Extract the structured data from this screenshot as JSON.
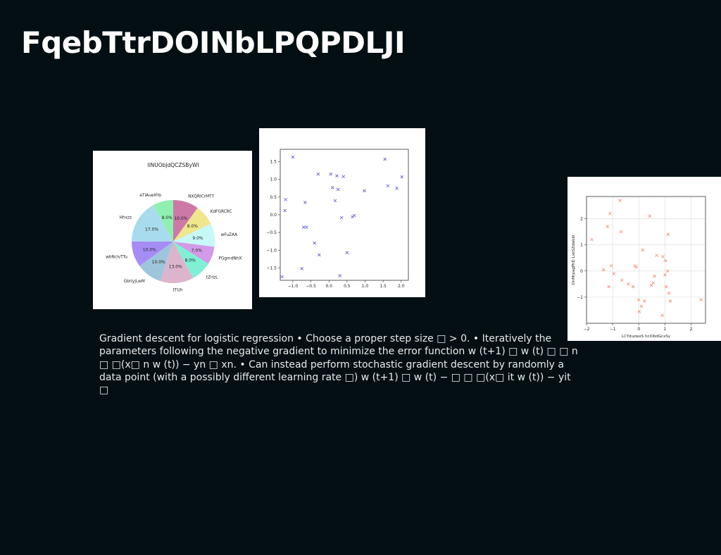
{
  "slide": {
    "title": "FqebTtrDOINbLPQPDLJI",
    "body": "Gradient descent for logistic regression • Choose a proper step size □ > 0. • Iteratively the parameters following the negative gradient to minimize the error function w (t+1) □ w (t) □ □ n □ □(x□ n w (t)) − yn □ xn. • Can instead perform stochastic gradient descent by randomly a data point (with a possibly different learning rate □) w (t+1) □ w (t) − □ □ □(x□ it w (t)) − yit □"
  },
  "chart_data": [
    {
      "type": "pie",
      "title": "liNUObjdQCZSByWI",
      "slices": [
        {
          "label": "NXQRICrMTT",
          "value": 10.0,
          "pct": "10.0%",
          "color": "#cc79a7"
        },
        {
          "label": "KdFGRCRC",
          "value": 8.0,
          "pct": "8.0%",
          "color": "#f0e68c"
        },
        {
          "label": "wFuZAA",
          "value": 9.0,
          "pct": "9.0%",
          "color": "#c6f8f8"
        },
        {
          "label": "PGgmdNhX",
          "value": 7.0,
          "pct": "7.0%",
          "color": "#d19be8"
        },
        {
          "label": "tZrIzL",
          "value": 8.0,
          "pct": "8.0%",
          "color": "#7ff0d4"
        },
        {
          "label": "tTUh",
          "value": 13.0,
          "pct": "13.0%",
          "color": "#dcb5cc"
        },
        {
          "label": "GbrlyjLwM",
          "value": 10.0,
          "pct": "10.0%",
          "color": "#9dc6dc"
        },
        {
          "label": "wbNclvTTu",
          "value": 10.0,
          "pct": "10.0%",
          "color": "#a68cf5"
        },
        {
          "label": "Hhxzz",
          "value": 17.0,
          "pct": "17.0%",
          "color": "#a9dbee"
        },
        {
          "label": "eTlAueHYo",
          "value": 8.0,
          "pct": "8.0%",
          "color": "#8ff0b0"
        }
      ]
    },
    {
      "type": "scatter",
      "title": "",
      "xlabel": "",
      "ylabel": "",
      "xlim": [
        -1.35,
        2.2
      ],
      "ylim": [
        -1.85,
        1.85
      ],
      "xticks": [
        "−1.0",
        "−0.5",
        "0.0",
        "0.5",
        "1.0",
        "1.5",
        "2.0"
      ],
      "xtick_values": [
        -1.0,
        -0.5,
        0.0,
        0.5,
        1.0,
        1.5,
        2.0
      ],
      "yticks": [
        "−1.5",
        "−1.0",
        "−0.5",
        "0.0",
        "0.5",
        "1.0",
        "1.5"
      ],
      "ytick_values": [
        -1.5,
        -1.0,
        -0.5,
        0.0,
        0.5,
        1.0,
        1.5
      ],
      "grid": false,
      "marker": "x",
      "color": "#5a5ad2",
      "points": [
        [
          -1.3,
          -1.75
        ],
        [
          -1.22,
          0.12
        ],
        [
          -1.2,
          0.43
        ],
        [
          -1.0,
          1.63
        ],
        [
          -0.75,
          -1.52
        ],
        [
          -0.7,
          -0.35
        ],
        [
          -0.66,
          0.35
        ],
        [
          -0.62,
          -0.35
        ],
        [
          -0.4,
          -0.8
        ],
        [
          -0.3,
          1.15
        ],
        [
          -0.27,
          -1.13
        ],
        [
          0.05,
          1.15
        ],
        [
          0.1,
          0.77
        ],
        [
          0.17,
          0.4
        ],
        [
          0.22,
          1.1
        ],
        [
          0.25,
          0.72
        ],
        [
          0.3,
          -1.72
        ],
        [
          0.35,
          -0.08
        ],
        [
          0.4,
          1.08
        ],
        [
          0.5,
          -1.07
        ],
        [
          0.65,
          -0.06
        ],
        [
          0.7,
          -0.02
        ],
        [
          0.98,
          0.68
        ],
        [
          1.55,
          1.57
        ],
        [
          1.63,
          0.82
        ],
        [
          1.88,
          0.75
        ],
        [
          2.02,
          1.07
        ]
      ]
    },
    {
      "type": "scatter",
      "title": "",
      "xlabel": "LCYduzwxS hcXIbdGcxSy",
      "ylabel": "OnMrpagPhD LxkSZdwkbl",
      "xlim": [
        -2.0,
        2.55
      ],
      "ylim": [
        -2.0,
        2.85
      ],
      "xticks": [
        "−2",
        "−1",
        "0",
        "1",
        "2"
      ],
      "xtick_values": [
        -2,
        -1,
        0,
        1,
        2
      ],
      "yticks": [
        "−1",
        "0",
        "1",
        "2"
      ],
      "ytick_values": [
        -1,
        0,
        1,
        2
      ],
      "grid": true,
      "marker": "x",
      "color": "#f08870",
      "points": [
        [
          -1.8,
          1.2
        ],
        [
          -1.35,
          0.05
        ],
        [
          -1.2,
          1.7
        ],
        [
          -1.15,
          -0.6
        ],
        [
          -1.1,
          2.2
        ],
        [
          -1.05,
          0.2
        ],
        [
          -0.95,
          -0.1
        ],
        [
          -0.72,
          2.7
        ],
        [
          -0.68,
          1.5
        ],
        [
          -0.65,
          -0.35
        ],
        [
          -0.4,
          -0.5
        ],
        [
          -0.22,
          -0.6
        ],
        [
          -0.15,
          0.2
        ],
        [
          -0.1,
          0.15
        ],
        [
          0.0,
          -1.1
        ],
        [
          0.02,
          -1.55
        ],
        [
          0.1,
          -1.35
        ],
        [
          0.15,
          0.8
        ],
        [
          0.22,
          -1.15
        ],
        [
          0.42,
          2.1
        ],
        [
          0.48,
          -0.55
        ],
        [
          0.55,
          -0.45
        ],
        [
          0.6,
          -0.2
        ],
        [
          0.68,
          0.6
        ],
        [
          0.9,
          -1.7
        ],
        [
          0.92,
          0.55
        ],
        [
          1.0,
          -0.15
        ],
        [
          1.02,
          0.4
        ],
        [
          1.05,
          -0.6
        ],
        [
          1.1,
          0.0
        ],
        [
          1.12,
          1.4
        ],
        [
          1.15,
          -0.85
        ],
        [
          1.2,
          -1.15
        ],
        [
          2.38,
          -1.1
        ]
      ]
    }
  ]
}
